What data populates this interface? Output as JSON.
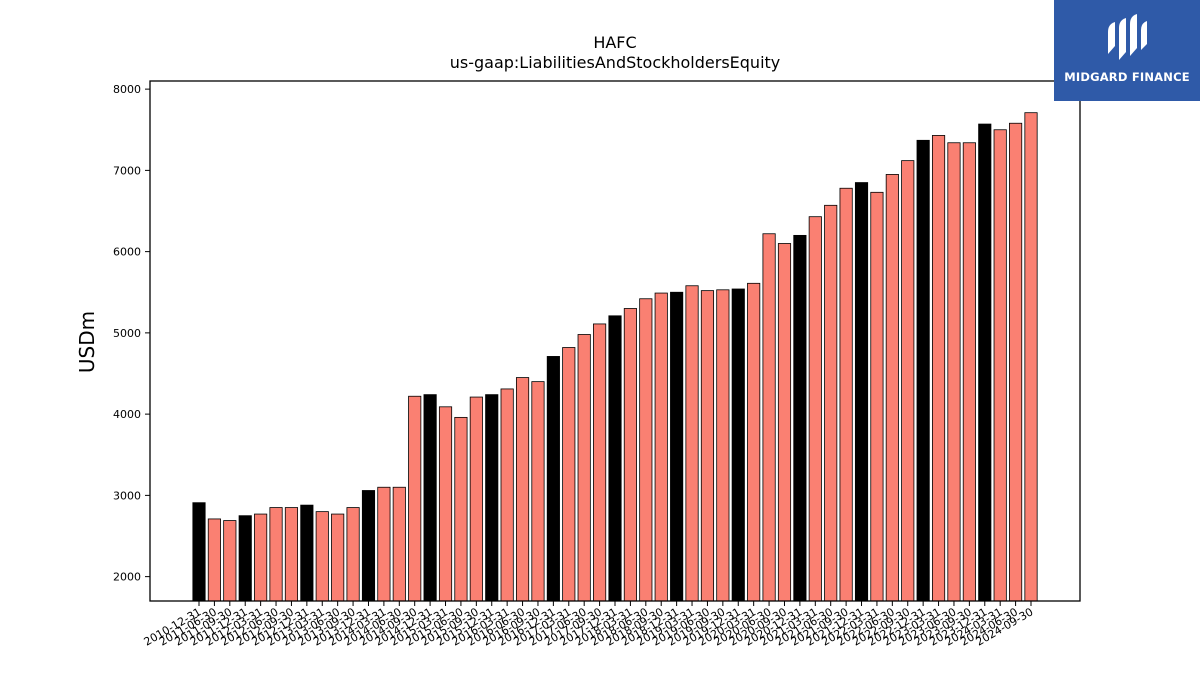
{
  "chart_data": {
    "type": "bar",
    "title": "HAFC",
    "subtitle": "us-gaap:LiabilitiesAndStockholdersEquity",
    "xlabel": "",
    "ylabel": "USDm",
    "ylim": [
      1700,
      8100
    ],
    "yticks": [
      2000,
      3000,
      4000,
      5000,
      6000,
      7000,
      8000
    ],
    "grid": false,
    "colors": {
      "regular": "#fa8072",
      "year_end": "#000000",
      "edge": "#000000"
    },
    "categories": [
      "2010-12-31",
      "2011-06-30",
      "2011-09-30",
      "2011-12-31",
      "2012-03-31",
      "2012-06-30",
      "2012-09-30",
      "2012-12-31",
      "2013-03-31",
      "2013-06-30",
      "2013-09-30",
      "2013-12-31",
      "2014-03-31",
      "2014-06-30",
      "2014-09-30",
      "2014-12-31",
      "2015-03-31",
      "2015-06-30",
      "2015-09-30",
      "2015-12-31",
      "2016-03-31",
      "2016-06-30",
      "2016-09-30",
      "2016-12-31",
      "2017-03-31",
      "2017-06-30",
      "2017-09-30",
      "2017-12-31",
      "2018-03-31",
      "2018-06-30",
      "2018-09-30",
      "2018-12-31",
      "2019-03-31",
      "2019-06-30",
      "2019-09-30",
      "2019-12-31",
      "2020-03-31",
      "2020-06-30",
      "2020-09-30",
      "2020-12-31",
      "2021-03-31",
      "2021-06-30",
      "2021-09-30",
      "2021-12-31",
      "2022-03-31",
      "2022-06-30",
      "2022-09-30",
      "2022-12-31",
      "2023-03-31",
      "2023-06-30",
      "2023-09-30",
      "2023-12-31",
      "2024-03-31",
      "2024-06-30",
      "2024-09-30"
    ],
    "values": [
      2910,
      2710,
      2690,
      2750,
      2770,
      2850,
      2850,
      2880,
      2800,
      2770,
      2850,
      3060,
      3100,
      3100,
      4220,
      4240,
      4090,
      3960,
      4210,
      4240,
      4310,
      4450,
      4400,
      4710,
      4820,
      4980,
      5110,
      5210,
      5300,
      5420,
      5490,
      5500,
      5580,
      5520,
      5530,
      5540,
      5610,
      6220,
      6100,
      6200,
      6430,
      6570,
      6780,
      6850,
      6730,
      6950,
      7120,
      7370,
      7430,
      7340,
      7340,
      7570,
      7500,
      7580,
      7710
    ],
    "year_end_flags": [
      true,
      false,
      false,
      true,
      false,
      false,
      false,
      true,
      false,
      false,
      false,
      true,
      false,
      false,
      false,
      true,
      false,
      false,
      false,
      true,
      false,
      false,
      false,
      true,
      false,
      false,
      false,
      true,
      false,
      false,
      false,
      true,
      false,
      false,
      false,
      true,
      false,
      false,
      false,
      true,
      false,
      false,
      false,
      true,
      false,
      false,
      false,
      true,
      false,
      false,
      false,
      true,
      false,
      false,
      false
    ]
  },
  "logo": {
    "text": "MIDGARD FINANCE",
    "icon": "midgard-finance-logo-icon"
  }
}
